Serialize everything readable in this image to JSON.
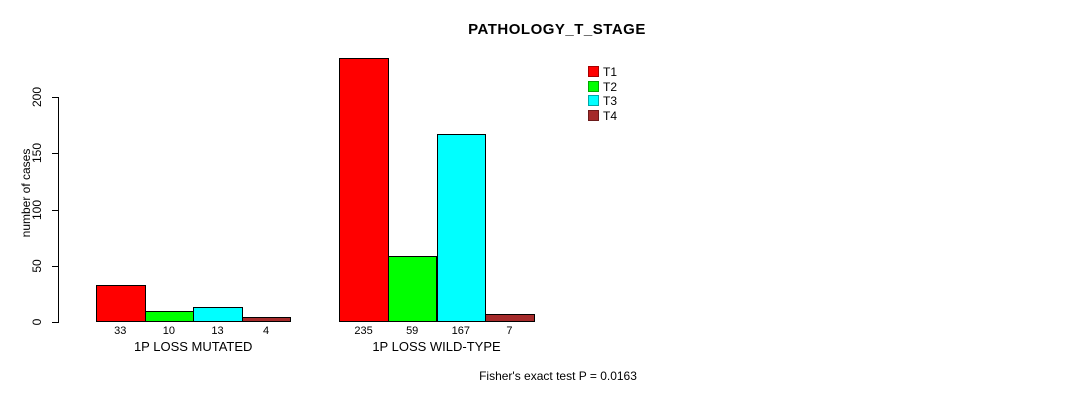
{
  "chart_data": {
    "type": "bar",
    "title": "PATHOLOGY_T_STAGE",
    "ylabel": "number of cases",
    "xlabel": "",
    "yticks": [
      0,
      50,
      100,
      150,
      200
    ],
    "ylim": [
      0,
      235
    ],
    "grid": false,
    "legend_position": "top-right",
    "categories": [
      "1P LOSS MUTATED",
      "1P LOSS WILD-TYPE"
    ],
    "series": [
      {
        "name": "T1",
        "color": "#FF0000",
        "values": [
          33,
          235
        ]
      },
      {
        "name": "T2",
        "color": "#00FF00",
        "values": [
          10,
          59
        ]
      },
      {
        "name": "T3",
        "color": "#00FFFF",
        "values": [
          13,
          167
        ]
      },
      {
        "name": "T4",
        "color": "#A52A2A",
        "values": [
          4,
          7
        ]
      }
    ],
    "bar_value_labels_shown": true,
    "footnote": "Fisher's exact test P = 0.0163"
  }
}
